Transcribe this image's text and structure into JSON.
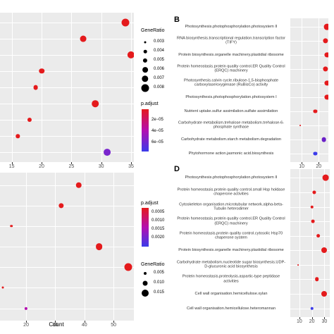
{
  "panel_labels": {
    "B": "B",
    "D": "D"
  },
  "count_label": "Count",
  "legend_A": {
    "size_title": "GeneRatio",
    "size_labels": [
      "0.003",
      "0.004",
      "0.005",
      "0.006",
      "0.007",
      "0.008"
    ],
    "color_title": "p.adjust",
    "color_labels": [
      "2e−05",
      "4e−05",
      "6e−05"
    ],
    "color_low": "#e41a1c",
    "color_high": "#3b3bea"
  },
  "legend_C": {
    "color_title": "p.adjust",
    "color_labels": [
      "0.0005",
      "0.0010",
      "0.0015",
      "0.0020"
    ],
    "size_title": "GeneRatio",
    "size_labels": [
      "0.005",
      "0.010",
      "0.015"
    ]
  },
  "chart_data": [
    {
      "type": "scatter",
      "panel": "A",
      "xlabel": "",
      "x_ticks": [
        "15",
        "20",
        "25",
        "30",
        "35"
      ],
      "xlim": [
        13.5,
        35
      ],
      "points": [
        {
          "count": 34,
          "generatio": 0.008,
          "padj": 1e-06
        },
        {
          "count": 27,
          "generatio": 0.0065,
          "padj": 1e-06
        },
        {
          "count": 35,
          "generatio": 0.0075,
          "padj": 1e-06
        },
        {
          "count": 20,
          "generatio": 0.0055,
          "padj": 1e-06
        },
        {
          "count": 19,
          "generatio": 0.005,
          "padj": 1e-06
        },
        {
          "count": 29,
          "generatio": 0.007,
          "padj": 1e-06
        },
        {
          "count": 18,
          "generatio": 0.0045,
          "padj": 1e-06
        },
        {
          "count": 16,
          "generatio": 0.004,
          "padj": 1e-06
        },
        {
          "count": 31,
          "generatio": 0.0072,
          "padj": 4.5e-05
        }
      ]
    },
    {
      "type": "scatter",
      "panel": "B",
      "x_ticks": [
        "10",
        "20"
      ],
      "xlim": [
        5,
        24
      ],
      "categories": [
        "Photosynthesis.photophosphorylation.photosystem II",
        "RNA biosynthesis.transcriptional regulation.transcription factor (TIFY)",
        "Protein biosynthesis.organelle machinery.plastidial ribosome",
        "Protein homeostasis.protein quality control.ER Quality Control (ERQC) machinery",
        "Photosynthesis.calvin cycle.ribulose-1,5-bisphosphate carboxylase/oxygenase (RuBisCo) activity",
        "Photosynthesis.photophosphorylation.photosystem I",
        "Nutrient uptake.sulfur assimilation.sulfate assimilation",
        "Carbohydrate metabolism.trehalose metabolism.trehalose-6-phosphate synthase",
        "Carbohydrate metabolism.starch metabolism.degradation",
        "Phytohormone action.jasmonic acid.biosynthesis"
      ],
      "points": [
        {
          "count": 25,
          "size": 5.5,
          "color": "#e41a1c"
        },
        {
          "count": 24,
          "size": 4.5,
          "color": "#e41a1c"
        },
        {
          "count": 25,
          "size": 4.5,
          "color": "#e41a1c"
        },
        {
          "count": 24,
          "size": 4.5,
          "color": "#e41a1c"
        },
        {
          "count": 25,
          "size": 4.5,
          "color": "#e41a1c"
        },
        {
          "count": 25,
          "size": 4.5,
          "color": "#e41a1c"
        },
        {
          "count": 18,
          "size": 3.2,
          "color": "#e41a1c"
        },
        {
          "count": 9,
          "size": 1.2,
          "color": "#e41a1c"
        },
        {
          "count": 23,
          "size": 4.2,
          "color": "#6a1fc7"
        },
        {
          "count": 18,
          "size": 3.2,
          "color": "#3b3bea"
        }
      ]
    },
    {
      "type": "scatter",
      "panel": "C",
      "xlabel": "Count",
      "x_ticks": [
        "20",
        "30",
        "40",
        "50"
      ],
      "xlim": [
        12,
        56
      ],
      "points": [
        {
          "count": 38,
          "generatio": 0.013,
          "padj": 0.0002
        },
        {
          "count": 32,
          "generatio": 0.011,
          "padj": 0.0002
        },
        {
          "count": 15,
          "generatio": 0.005,
          "padj": 0.0002
        },
        {
          "count": 45,
          "generatio": 0.015,
          "padj": 0.0002
        },
        {
          "count": 55,
          "generatio": 0.017,
          "padj": 0.0002
        },
        {
          "count": 12,
          "generatio": 0.004,
          "padj": 0.0002
        },
        {
          "count": 20,
          "generatio": 0.006,
          "padj": 0.0012
        }
      ]
    },
    {
      "type": "scatter",
      "panel": "D",
      "x_ticks": [
        "10",
        "20",
        "30"
      ],
      "xlim": [
        5,
        32
      ],
      "categories": [
        "Photosynthesis.photophosphorylation.photosystem II",
        "Protein homeostasis.protein quality control.small Hsp holdase chaperone activities",
        "Cytoskeleton organisation.microtubular network.alpha-beta-Tubulin heterodimer",
        "Protein homeostasis.protein quality control.ER Quality Control (ERQC) machinery",
        "Protein homeostasis.protein quality control.cytosolic Hsp70 chaperone system",
        "Protein biosynthesis.organelle machinery.plastidial ribosome",
        "Carbohydrate metabolism.nucleotide sugar biosynthesis.UDP-D-glucuronic acid biosynthesis",
        "Protein homeostasis.proteolysis.aspartic-type peptidase activities",
        "Cell wall organisation.hemicellulose.xylan",
        "Cell wall organisation.hemicellulose.heteromannan"
      ],
      "points": [
        {
          "count": 31,
          "size": 5.5,
          "color": "#e41a1c"
        },
        {
          "count": 22,
          "size": 3.2,
          "color": "#e41a1c"
        },
        {
          "count": 20,
          "size": 2.8,
          "color": "#e41a1c"
        },
        {
          "count": 21,
          "size": 3.0,
          "color": "#e41a1c"
        },
        {
          "count": 25,
          "size": 3.6,
          "color": "#e41a1c"
        },
        {
          "count": 30,
          "size": 5.0,
          "color": "#e41a1c"
        },
        {
          "count": 9,
          "size": 1.2,
          "color": "#e41a1c"
        },
        {
          "count": 24,
          "size": 3.5,
          "color": "#e41a1c"
        },
        {
          "count": 30,
          "size": 5.0,
          "color": "#e41a1c"
        },
        {
          "count": 20,
          "size": 2.8,
          "color": "#3b3bea"
        }
      ]
    }
  ]
}
